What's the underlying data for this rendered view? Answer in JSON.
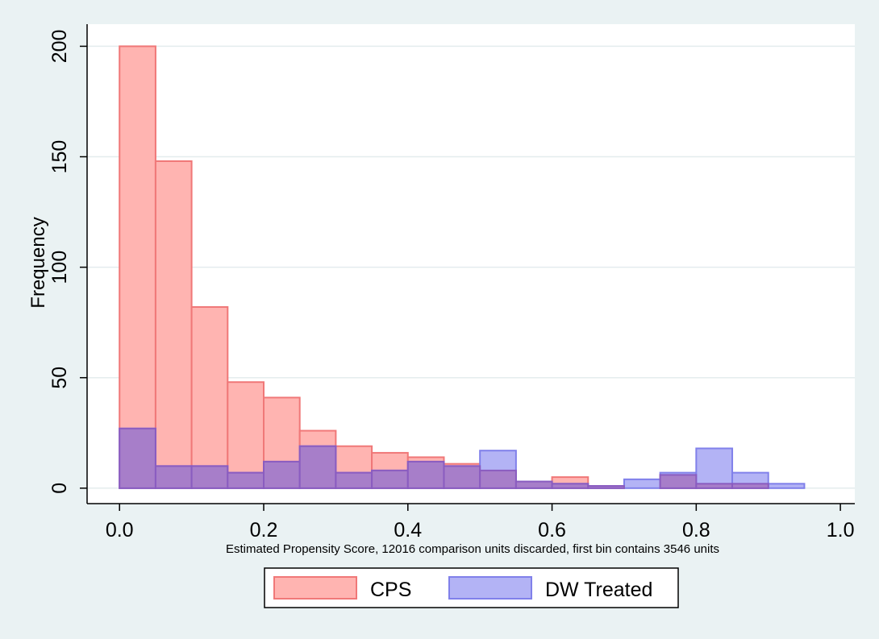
{
  "chart_data": {
    "type": "bar",
    "title": "",
    "xlabel": "Estimated Propensity Score, 12016 comparison units discarded, first bin contains 3546 units",
    "ylabel": "Frequency",
    "xlim": [
      -0.045,
      1.02
    ],
    "ylim": [
      -7,
      210
    ],
    "xticks": [
      0,
      0.2,
      0.4,
      0.6,
      0.8,
      1
    ],
    "xtick_labels": [
      "0.0",
      "0.2",
      "0.4",
      "0.6",
      "0.8",
      "1.0"
    ],
    "yticks": [
      0,
      50,
      100,
      150,
      200
    ],
    "ytick_labels": [
      "0",
      "50",
      "100",
      "150",
      "200"
    ],
    "bin_width": 0.05,
    "grid": true,
    "legend_position": "bottom",
    "series": [
      {
        "name": "CPS",
        "fill": "#ffb4b1",
        "stroke": "#f07878",
        "bins": [
          {
            "x0": 0.0,
            "value": 200
          },
          {
            "x0": 0.05,
            "value": 148
          },
          {
            "x0": 0.1,
            "value": 82
          },
          {
            "x0": 0.15,
            "value": 48
          },
          {
            "x0": 0.2,
            "value": 41
          },
          {
            "x0": 0.25,
            "value": 26
          },
          {
            "x0": 0.3,
            "value": 19
          },
          {
            "x0": 0.35,
            "value": 16
          },
          {
            "x0": 0.4,
            "value": 14
          },
          {
            "x0": 0.45,
            "value": 11
          },
          {
            "x0": 0.5,
            "value": 8
          },
          {
            "x0": 0.55,
            "value": 3
          },
          {
            "x0": 0.6,
            "value": 5
          },
          {
            "x0": 0.65,
            "value": 1
          },
          {
            "x0": 0.7,
            "value": 0
          },
          {
            "x0": 0.75,
            "value": 6
          },
          {
            "x0": 0.8,
            "value": 2
          },
          {
            "x0": 0.85,
            "value": 2
          }
        ]
      },
      {
        "name": "DW Treated",
        "fill": "#b3b3f5",
        "stroke": "#8080ea",
        "bins": [
          {
            "x0": 0.0,
            "value": 27
          },
          {
            "x0": 0.05,
            "value": 10
          },
          {
            "x0": 0.1,
            "value": 10
          },
          {
            "x0": 0.15,
            "value": 7
          },
          {
            "x0": 0.2,
            "value": 12
          },
          {
            "x0": 0.25,
            "value": 19
          },
          {
            "x0": 0.3,
            "value": 7
          },
          {
            "x0": 0.35,
            "value": 8
          },
          {
            "x0": 0.4,
            "value": 12
          },
          {
            "x0": 0.45,
            "value": 10
          },
          {
            "x0": 0.5,
            "value": 17
          },
          {
            "x0": 0.55,
            "value": 3
          },
          {
            "x0": 0.6,
            "value": 2
          },
          {
            "x0": 0.65,
            "value": 1
          },
          {
            "x0": 0.7,
            "value": 4
          },
          {
            "x0": 0.75,
            "value": 7
          },
          {
            "x0": 0.8,
            "value": 18
          },
          {
            "x0": 0.85,
            "value": 7
          },
          {
            "x0": 0.9,
            "value": 2
          }
        ]
      }
    ],
    "overlap_fill": "#a77ec9",
    "overlap_stroke": "#8a5cc0"
  }
}
